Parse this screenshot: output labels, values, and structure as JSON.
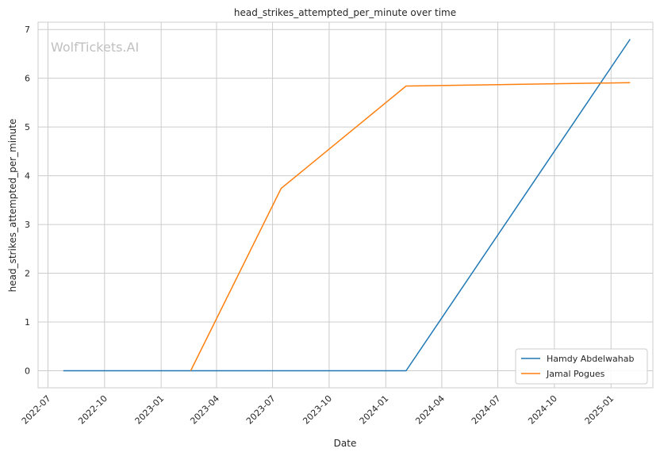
{
  "watermark": "WolfTickets.AI",
  "chart_data": {
    "type": "line",
    "title": "head_strikes_attempted_per_minute over time",
    "xlabel": "Date",
    "ylabel": "head_strikes_attempted_per_minute",
    "x_ticks": [
      "2022-07",
      "2022-10",
      "2023-01",
      "2023-04",
      "2023-07",
      "2023-10",
      "2024-01",
      "2024-04",
      "2024-07",
      "2024-10",
      "2025-01"
    ],
    "y_ticks": [
      0,
      1,
      2,
      3,
      4,
      5,
      6,
      7
    ],
    "xlim": [
      "2022-06-15",
      "2025-03-10"
    ],
    "ylim": [
      -0.35,
      7.15
    ],
    "grid": true,
    "legend_position": "lower-right",
    "series": [
      {
        "name": "Hamdy Abdelwahab",
        "color": "#1f77b4",
        "points": [
          {
            "x": "2022-07-26",
            "y": 0
          },
          {
            "x": "2024-02-03",
            "y": 0
          },
          {
            "x": "2025-02-01",
            "y": 6.8
          }
        ]
      },
      {
        "name": "Jamal Pogues",
        "color": "#ff7f0e",
        "points": [
          {
            "x": "2023-02-18",
            "y": 0
          },
          {
            "x": "2023-07-15",
            "y": 3.74
          },
          {
            "x": "2024-02-03",
            "y": 5.84
          },
          {
            "x": "2025-02-01",
            "y": 5.91
          }
        ]
      }
    ]
  }
}
